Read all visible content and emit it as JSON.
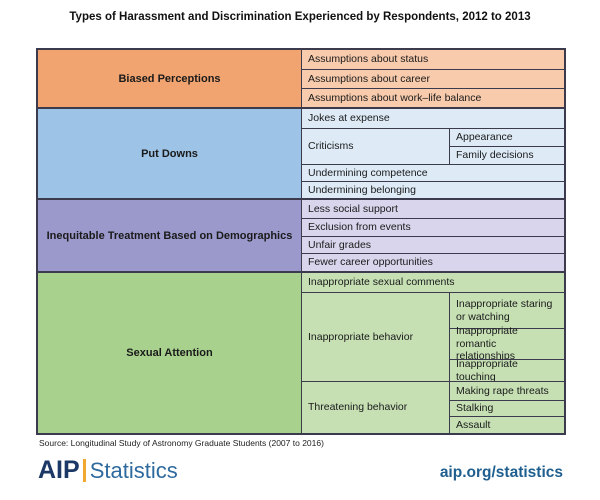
{
  "title": "Types of Harassment and Discrimination Experienced by Respondents, 2012 to 2013",
  "sections": [
    {
      "category": "Biased Perceptions",
      "color": "#F1A470",
      "subcolor": "#F8CBAD",
      "rows": [
        {
          "label": "Assumptions about status"
        },
        {
          "label": "Assumptions about career"
        },
        {
          "label": "Assumptions about work–life balance"
        }
      ]
    },
    {
      "category": "Put Downs",
      "color": "#9DC3E6",
      "subcolor": "#DEEBF7",
      "rows": [
        {
          "label": "Jokes at expense"
        },
        {
          "label": "Criticisms",
          "children": [
            "Appearance",
            "Family decisions"
          ]
        },
        {
          "label": "Undermining competence"
        },
        {
          "label": "Undermining belonging"
        }
      ]
    },
    {
      "category": "Inequitable Treatment Based on Demographics",
      "color": "#9B99CC",
      "subcolor": "#D8D5EC",
      "rows": [
        {
          "label": "Less social support"
        },
        {
          "label": "Exclusion from events"
        },
        {
          "label": "Unfair grades"
        },
        {
          "label": "Fewer career opportunities"
        }
      ]
    },
    {
      "category": "Sexual Attention",
      "color": "#A9D18E",
      "subcolor": "#C6E0B4",
      "rows": [
        {
          "label": "Inappropriate sexual comments"
        },
        {
          "label": "Inappropriate behavior",
          "children": [
            "Inappropriate staring or watching",
            "Inappropriate romantic relationships",
            "Inappropriate touching"
          ]
        },
        {
          "label": "Threatening behavior",
          "children": [
            "Making rape threats",
            "Stalking",
            "Assault"
          ]
        }
      ]
    }
  ],
  "footer": {
    "source": "Source: Longitudinal Study of Astronomy Graduate Students (2007 to 2016)",
    "logo_aip": "AIP",
    "logo_statistics": "Statistics",
    "url": "aip.org/statistics"
  },
  "colors": {
    "border": "#3B3B4D",
    "logo_navy": "#1C3866",
    "logo_gold": "#F0A830",
    "logo_blue": "#2E6A9E",
    "url_blue": "#1F5F8F"
  }
}
